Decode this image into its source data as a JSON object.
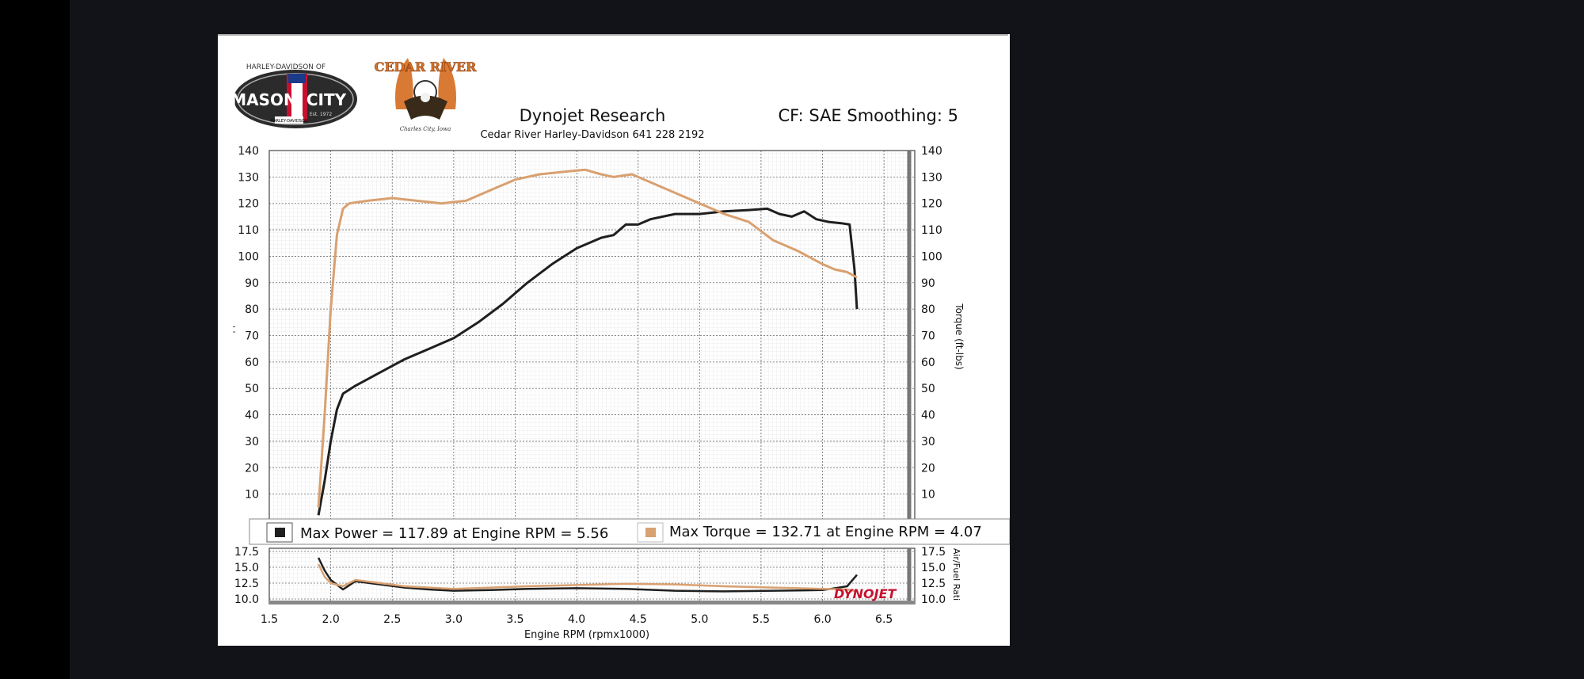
{
  "header": {
    "title": "Dynojet Research",
    "subtitle": "Cedar River Harley-Davidson 641 228 2192",
    "cf": "CF: SAE Smoothing: 5"
  },
  "logos": {
    "mason_city_arc": "HARLEY-DAVIDSON OF",
    "mason": "MASON",
    "city": "CITY",
    "est": "Est. 1972",
    "badge": "HARLEY-DAVIDSON",
    "cedar_river": "CEDAR RIVER",
    "cedar_sub": "Charles City, Iowa",
    "dynojet": "DYNOJET"
  },
  "colors": {
    "power": "#1f1f1f",
    "torque": "#d9a070",
    "grid": "#7a7a7a",
    "dynojet": "#c8102e"
  },
  "legend": {
    "power": "Max Power = 117.89 at Engine RPM = 5.56",
    "torque": "Max Torque = 132.71 at Engine RPM = 4.07"
  },
  "chart_data": [
    {
      "type": "line",
      "title": "Dynojet Research",
      "xlabel": "Engine RPM (rpmx1000)",
      "ylabel": "",
      "ylabel_right": "Torque (ft-lbs)",
      "xlim": [
        1.5,
        6.75
      ],
      "ylim": [
        0,
        140
      ],
      "yticks": [
        10,
        20,
        30,
        40,
        50,
        60,
        70,
        80,
        90,
        100,
        110,
        120,
        130,
        140
      ],
      "grid": true,
      "series": [
        {
          "name": "Max Power",
          "x": [
            1.9,
            1.95,
            2.0,
            2.05,
            2.1,
            2.2,
            2.4,
            2.6,
            2.8,
            3.0,
            3.2,
            3.4,
            3.6,
            3.8,
            4.0,
            4.2,
            4.3,
            4.4,
            4.5,
            4.6,
            4.8,
            5.0,
            5.2,
            5.4,
            5.55,
            5.65,
            5.75,
            5.85,
            5.95,
            6.05,
            6.15,
            6.22,
            6.26,
            6.28
          ],
          "y": [
            2,
            15,
            30,
            42,
            48,
            51,
            56,
            61,
            65,
            69,
            75,
            82,
            90,
            97,
            103,
            107,
            108,
            112,
            112,
            114,
            116,
            116,
            117,
            117.5,
            118,
            116,
            115,
            117,
            114,
            113,
            112.5,
            112,
            95,
            80
          ]
        },
        {
          "name": "Max Torque",
          "x": [
            1.9,
            1.95,
            2.0,
            2.05,
            2.1,
            2.15,
            2.3,
            2.5,
            2.7,
            2.9,
            3.1,
            3.3,
            3.5,
            3.7,
            3.9,
            4.07,
            4.2,
            4.3,
            4.45,
            4.6,
            4.8,
            5.0,
            5.2,
            5.4,
            5.6,
            5.8,
            6.0,
            6.1,
            6.2,
            6.28
          ],
          "y": [
            5,
            40,
            80,
            108,
            118,
            120,
            121,
            122,
            121,
            120,
            121,
            125,
            129,
            131,
            132,
            132.71,
            131,
            130,
            131,
            128,
            124,
            120,
            116,
            113,
            106,
            102,
            97,
            95,
            94,
            92
          ]
        }
      ]
    },
    {
      "type": "line",
      "title": "",
      "xlabel": "Engine RPM (rpmx1000)",
      "ylabel_right": "Air/Fuel Rati",
      "xlim": [
        1.5,
        6.75
      ],
      "ylim": [
        9.5,
        18
      ],
      "yticks": [
        10.0,
        12.5,
        15.0,
        17.5
      ],
      "xticks": [
        1.5,
        2.0,
        2.5,
        3.0,
        3.5,
        4.0,
        4.5,
        5.0,
        5.5,
        6.0,
        6.5
      ],
      "grid": true,
      "series": [
        {
          "name": "Max Power",
          "x": [
            1.9,
            1.95,
            2.0,
            2.1,
            2.2,
            2.4,
            2.6,
            2.8,
            3.0,
            3.3,
            3.6,
            4.0,
            4.4,
            4.8,
            5.2,
            5.6,
            6.0,
            6.2,
            6.28
          ],
          "y": [
            16.5,
            14.5,
            13.0,
            11.5,
            12.8,
            12.3,
            11.8,
            11.5,
            11.3,
            11.4,
            11.6,
            11.7,
            11.6,
            11.3,
            11.2,
            11.3,
            11.4,
            12.0,
            13.8
          ]
        },
        {
          "name": "Max Torque",
          "x": [
            1.9,
            1.95,
            2.0,
            2.1,
            2.2,
            2.4,
            2.6,
            2.8,
            3.0,
            3.3,
            3.6,
            4.0,
            4.4,
            4.8,
            5.2,
            5.6,
            6.0,
            6.2,
            6.28
          ],
          "y": [
            15.5,
            13.5,
            12.5,
            12.0,
            13.0,
            12.5,
            12.0,
            11.8,
            11.6,
            11.8,
            12.0,
            12.2,
            12.4,
            12.3,
            12.0,
            11.8,
            11.6,
            11.5,
            11.2
          ]
        }
      ]
    }
  ]
}
